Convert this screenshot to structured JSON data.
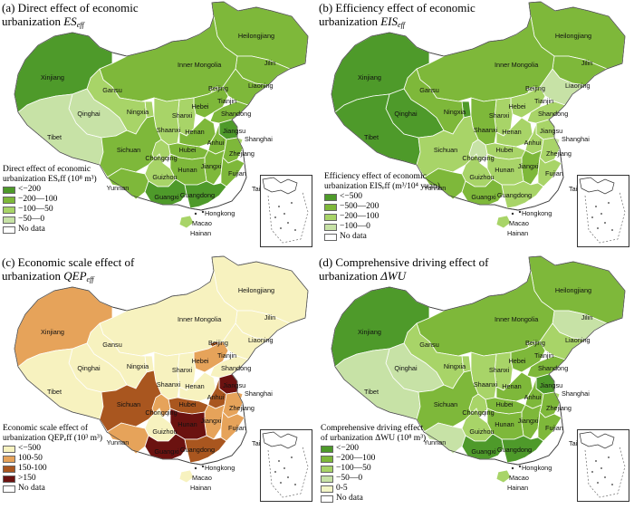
{
  "panels": [
    {
      "id": "a",
      "title_line1": "(a) Direct effect of economic",
      "title_line2_text": "urbanization ",
      "title_symbol": "ES",
      "title_sub": "eff",
      "legend_title_1": "Direct effect of economic",
      "legend_title_2": "urbanization ESₑff (10⁸ m³)",
      "legend": [
        {
          "label": "<−200",
          "color": "#4e9a2a"
        },
        {
          "label": "−200—100",
          "color": "#7eb83a"
        },
        {
          "label": "−100—50",
          "color": "#a8d468"
        },
        {
          "label": "−50—0",
          "color": "#c7e2a6"
        },
        {
          "label": "No data",
          "color": "#ffffff"
        }
      ]
    },
    {
      "id": "b",
      "title_line1": "(b) Efficiency effect of economic",
      "title_line2_text": "urbanization  ",
      "title_symbol": "EIS",
      "title_sub": "eff",
      "legend_title_1": "Efficiency effect of economic",
      "legend_title_2": "urbanization EISₑff (m³/10⁴ yuan)",
      "legend": [
        {
          "label": "<−500",
          "color": "#4e9a2a"
        },
        {
          "label": "−500—200",
          "color": "#7eb83a"
        },
        {
          "label": "−200—100",
          "color": "#a8d468"
        },
        {
          "label": "−100—0",
          "color": "#c7e2a6"
        },
        {
          "label": "No data",
          "color": "#ffffff"
        }
      ]
    },
    {
      "id": "c",
      "title_line1": "(c) Economic scale effect of",
      "title_line2_text": "urbanization  ",
      "title_symbol": "QEP",
      "title_sub": "eff",
      "legend_title_1": "Economic scale effect of",
      "legend_title_2": "urbanization QEPₑff (10³ m³)",
      "legend": [
        {
          "label": "<−500",
          "color": "#f7f2bf"
        },
        {
          "label": "100-50",
          "color": "#e6a35a"
        },
        {
          "label": "150-100",
          "color": "#a9561f"
        },
        {
          "label": ">150",
          "color": "#6b1210"
        },
        {
          "label": "No data",
          "color": "#ffffff"
        }
      ]
    },
    {
      "id": "d",
      "title_line1": "(d) Comprehensive driving effect of",
      "title_line2_text": "urbanization ",
      "title_symbol": "ΔWU",
      "title_sub": "",
      "legend_title_1": "Comprehensive driving effect",
      "legend_title_2": "of urbanization ΔWU (10⁸ m³)",
      "legend": [
        {
          "label": "<−200",
          "color": "#4e9a2a"
        },
        {
          "label": "−200—100",
          "color": "#7eb83a"
        },
        {
          "label": "−100—50",
          "color": "#a8d468"
        },
        {
          "label": "−50—0",
          "color": "#c7e2a6"
        },
        {
          "label": "0-5",
          "color": "#f2f5c6"
        },
        {
          "label": "No data",
          "color": "#ffffff"
        }
      ]
    }
  ],
  "province_labels": [
    "Heilongjiang",
    "Jilin",
    "Liaoning",
    "Inner Mongolia",
    "Beijing",
    "Tianjin",
    "Hebei",
    "Shanxi",
    "Shandong",
    "Ningxia",
    "Gansu",
    "Xinjiang",
    "Qinghai",
    "Tibet",
    "Shaanxi",
    "Henan",
    "Jiangsu",
    "Shanghai",
    "Anhui",
    "Hubei",
    "Sichuan",
    "Chongqing",
    "Zhejiang",
    "Jiangxi",
    "Hunan",
    "Guizhou",
    "Yunnan",
    "Fujian",
    "Guangxi",
    "Guangdong",
    "Taiwan",
    "Hongkong",
    "Macao",
    "Hainan"
  ],
  "province_colors": {
    "a": {
      "Heilongjiang": "#7eb83a",
      "Jilin": "#7eb83a",
      "Liaoning": "#7eb83a",
      "Inner Mongolia": "#7eb83a",
      "Beijing": "#a8d468",
      "Tianjin": "#a8d468",
      "Hebei": "#7eb83a",
      "Shanxi": "#a8d468",
      "Shandong": "#7eb83a",
      "Ningxia": "#a8d468",
      "Gansu": "#a8d468",
      "Xinjiang": "#4e9a2a",
      "Qinghai": "#c7e2a6",
      "Tibet": "#c7e2a6",
      "Shaanxi": "#a8d468",
      "Henan": "#7eb83a",
      "Jiangsu": "#4e9a2a",
      "Shanghai": "#a8d468",
      "Anhui": "#7eb83a",
      "Hubei": "#7eb83a",
      "Sichuan": "#7eb83a",
      "Chongqing": "#a8d468",
      "Zhejiang": "#7eb83a",
      "Jiangxi": "#7eb83a",
      "Hunan": "#7eb83a",
      "Guizhou": "#a8d468",
      "Yunnan": "#7eb83a",
      "Fujian": "#7eb83a",
      "Guangxi": "#4e9a2a",
      "Guangdong": "#4e9a2a",
      "Taiwan": "#ffffff",
      "Hainan": "#a8d468"
    },
    "b": {
      "Heilongjiang": "#7eb83a",
      "Jilin": "#7eb83a",
      "Liaoning": "#c7e2a6",
      "Inner Mongolia": "#7eb83a",
      "Beijing": "#c7e2a6",
      "Tianjin": "#c7e2a6",
      "Hebei": "#a8d468",
      "Shanxi": "#a8d468",
      "Shandong": "#a8d468",
      "Ningxia": "#4e9a2a",
      "Gansu": "#7eb83a",
      "Xinjiang": "#4e9a2a",
      "Qinghai": "#4e9a2a",
      "Tibet": "#4e9a2a",
      "Shaanxi": "#7eb83a",
      "Henan": "#a8d468",
      "Jiangsu": "#a8d468",
      "Shanghai": "#c7e2a6",
      "Anhui": "#a8d468",
      "Hubei": "#a8d468",
      "Sichuan": "#a8d468",
      "Chongqing": "#c7e2a6",
      "Zhejiang": "#a8d468",
      "Jiangxi": "#7eb83a",
      "Hunan": "#a8d468",
      "Guizhou": "#a8d468",
      "Yunnan": "#7eb83a",
      "Fujian": "#a8d468",
      "Guangxi": "#7eb83a",
      "Guangdong": "#a8d468",
      "Taiwan": "#ffffff",
      "Hainan": "#a8d468"
    },
    "c": {
      "Heilongjiang": "#f7f2bf",
      "Jilin": "#f7f2bf",
      "Liaoning": "#f7f2bf",
      "Inner Mongolia": "#f7f2bf",
      "Beijing": "#a9561f",
      "Tianjin": "#f7f2bf",
      "Hebei": "#e6a35a",
      "Shanxi": "#f7f2bf",
      "Shandong": "#f7f2bf",
      "Ningxia": "#f7f2bf",
      "Gansu": "#f7f2bf",
      "Xinjiang": "#e6a35a",
      "Qinghai": "#f7f2bf",
      "Tibet": "#f7f2bf",
      "Shaanxi": "#f7f2bf",
      "Henan": "#f7f2bf",
      "Jiangsu": "#6b1210",
      "Shanghai": "#e6a35a",
      "Anhui": "#a9561f",
      "Hubei": "#a9561f",
      "Sichuan": "#a9561f",
      "Chongqing": "#e6a35a",
      "Zhejiang": "#e6a35a",
      "Jiangxi": "#e6a35a",
      "Hunan": "#6b1210",
      "Guizhou": "#f7f2bf",
      "Yunnan": "#e6a35a",
      "Fujian": "#e6a35a",
      "Guangxi": "#6b1210",
      "Guangdong": "#a9561f",
      "Taiwan": "#ffffff",
      "Hainan": "#f7f2bf"
    },
    "d": {
      "Heilongjiang": "#7eb83a",
      "Jilin": "#c7e2a6",
      "Liaoning": "#a8d468",
      "Inner Mongolia": "#7eb83a",
      "Beijing": "#a8d468",
      "Tianjin": "#a8d468",
      "Hebei": "#7eb83a",
      "Shanxi": "#a8d468",
      "Shandong": "#7eb83a",
      "Ningxia": "#a8d468",
      "Gansu": "#a8d468",
      "Xinjiang": "#4e9a2a",
      "Qinghai": "#c7e2a6",
      "Tibet": "#c7e2a6",
      "Shaanxi": "#a8d468",
      "Henan": "#7eb83a",
      "Jiangsu": "#4e9a2a",
      "Shanghai": "#a8d468",
      "Anhui": "#7eb83a",
      "Hubei": "#7eb83a",
      "Sichuan": "#7eb83a",
      "Chongqing": "#a8d468",
      "Zhejiang": "#7eb83a",
      "Jiangxi": "#7eb83a",
      "Hunan": "#7eb83a",
      "Guizhou": "#a8d468",
      "Yunnan": "#c7e2a6",
      "Fujian": "#7eb83a",
      "Guangxi": "#4e9a2a",
      "Guangdong": "#4e9a2a",
      "Taiwan": "#ffffff",
      "Hainan": "#a8d468"
    }
  }
}
